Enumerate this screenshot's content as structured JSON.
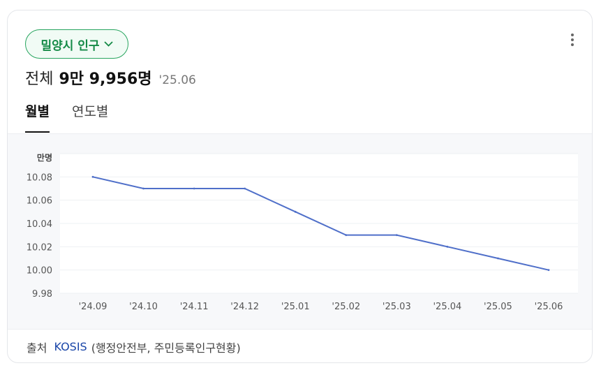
{
  "region_button": {
    "label": "밀양시 인구"
  },
  "summary": {
    "label": "전체",
    "value": "9만 9,956명",
    "date": "'25.06"
  },
  "tabs": [
    {
      "label": "월별",
      "active": true
    },
    {
      "label": "연도별",
      "active": false
    }
  ],
  "colors": {
    "accent_green": "#148a46",
    "line": "#4f6fc9"
  },
  "icons": {
    "region_toggle": "chevron-down-icon",
    "more": "more-vertical-icon"
  },
  "chart_data": {
    "type": "line",
    "ylabel": "만명",
    "categories": [
      "'24.09",
      "'24.10",
      "'24.11",
      "'24.12",
      "'25.01",
      "'25.02",
      "'25.03",
      "'25.04",
      "'25.05",
      "'25.06"
    ],
    "y_ticks": [
      "9.98",
      "10.00",
      "10.02",
      "10.04",
      "10.06",
      "10.08"
    ],
    "ylim": [
      9.98,
      10.1
    ],
    "series": [
      {
        "values": [
          10.08,
          10.07,
          10.07,
          10.07,
          10.05,
          10.03,
          10.03,
          10.02,
          10.01,
          10.0
        ]
      }
    ],
    "grid": true,
    "legend": "none"
  },
  "footer": {
    "label": "출처",
    "source_link": "KOSIS",
    "source_org": "(행정안전부, 주민등록인구현황)"
  }
}
